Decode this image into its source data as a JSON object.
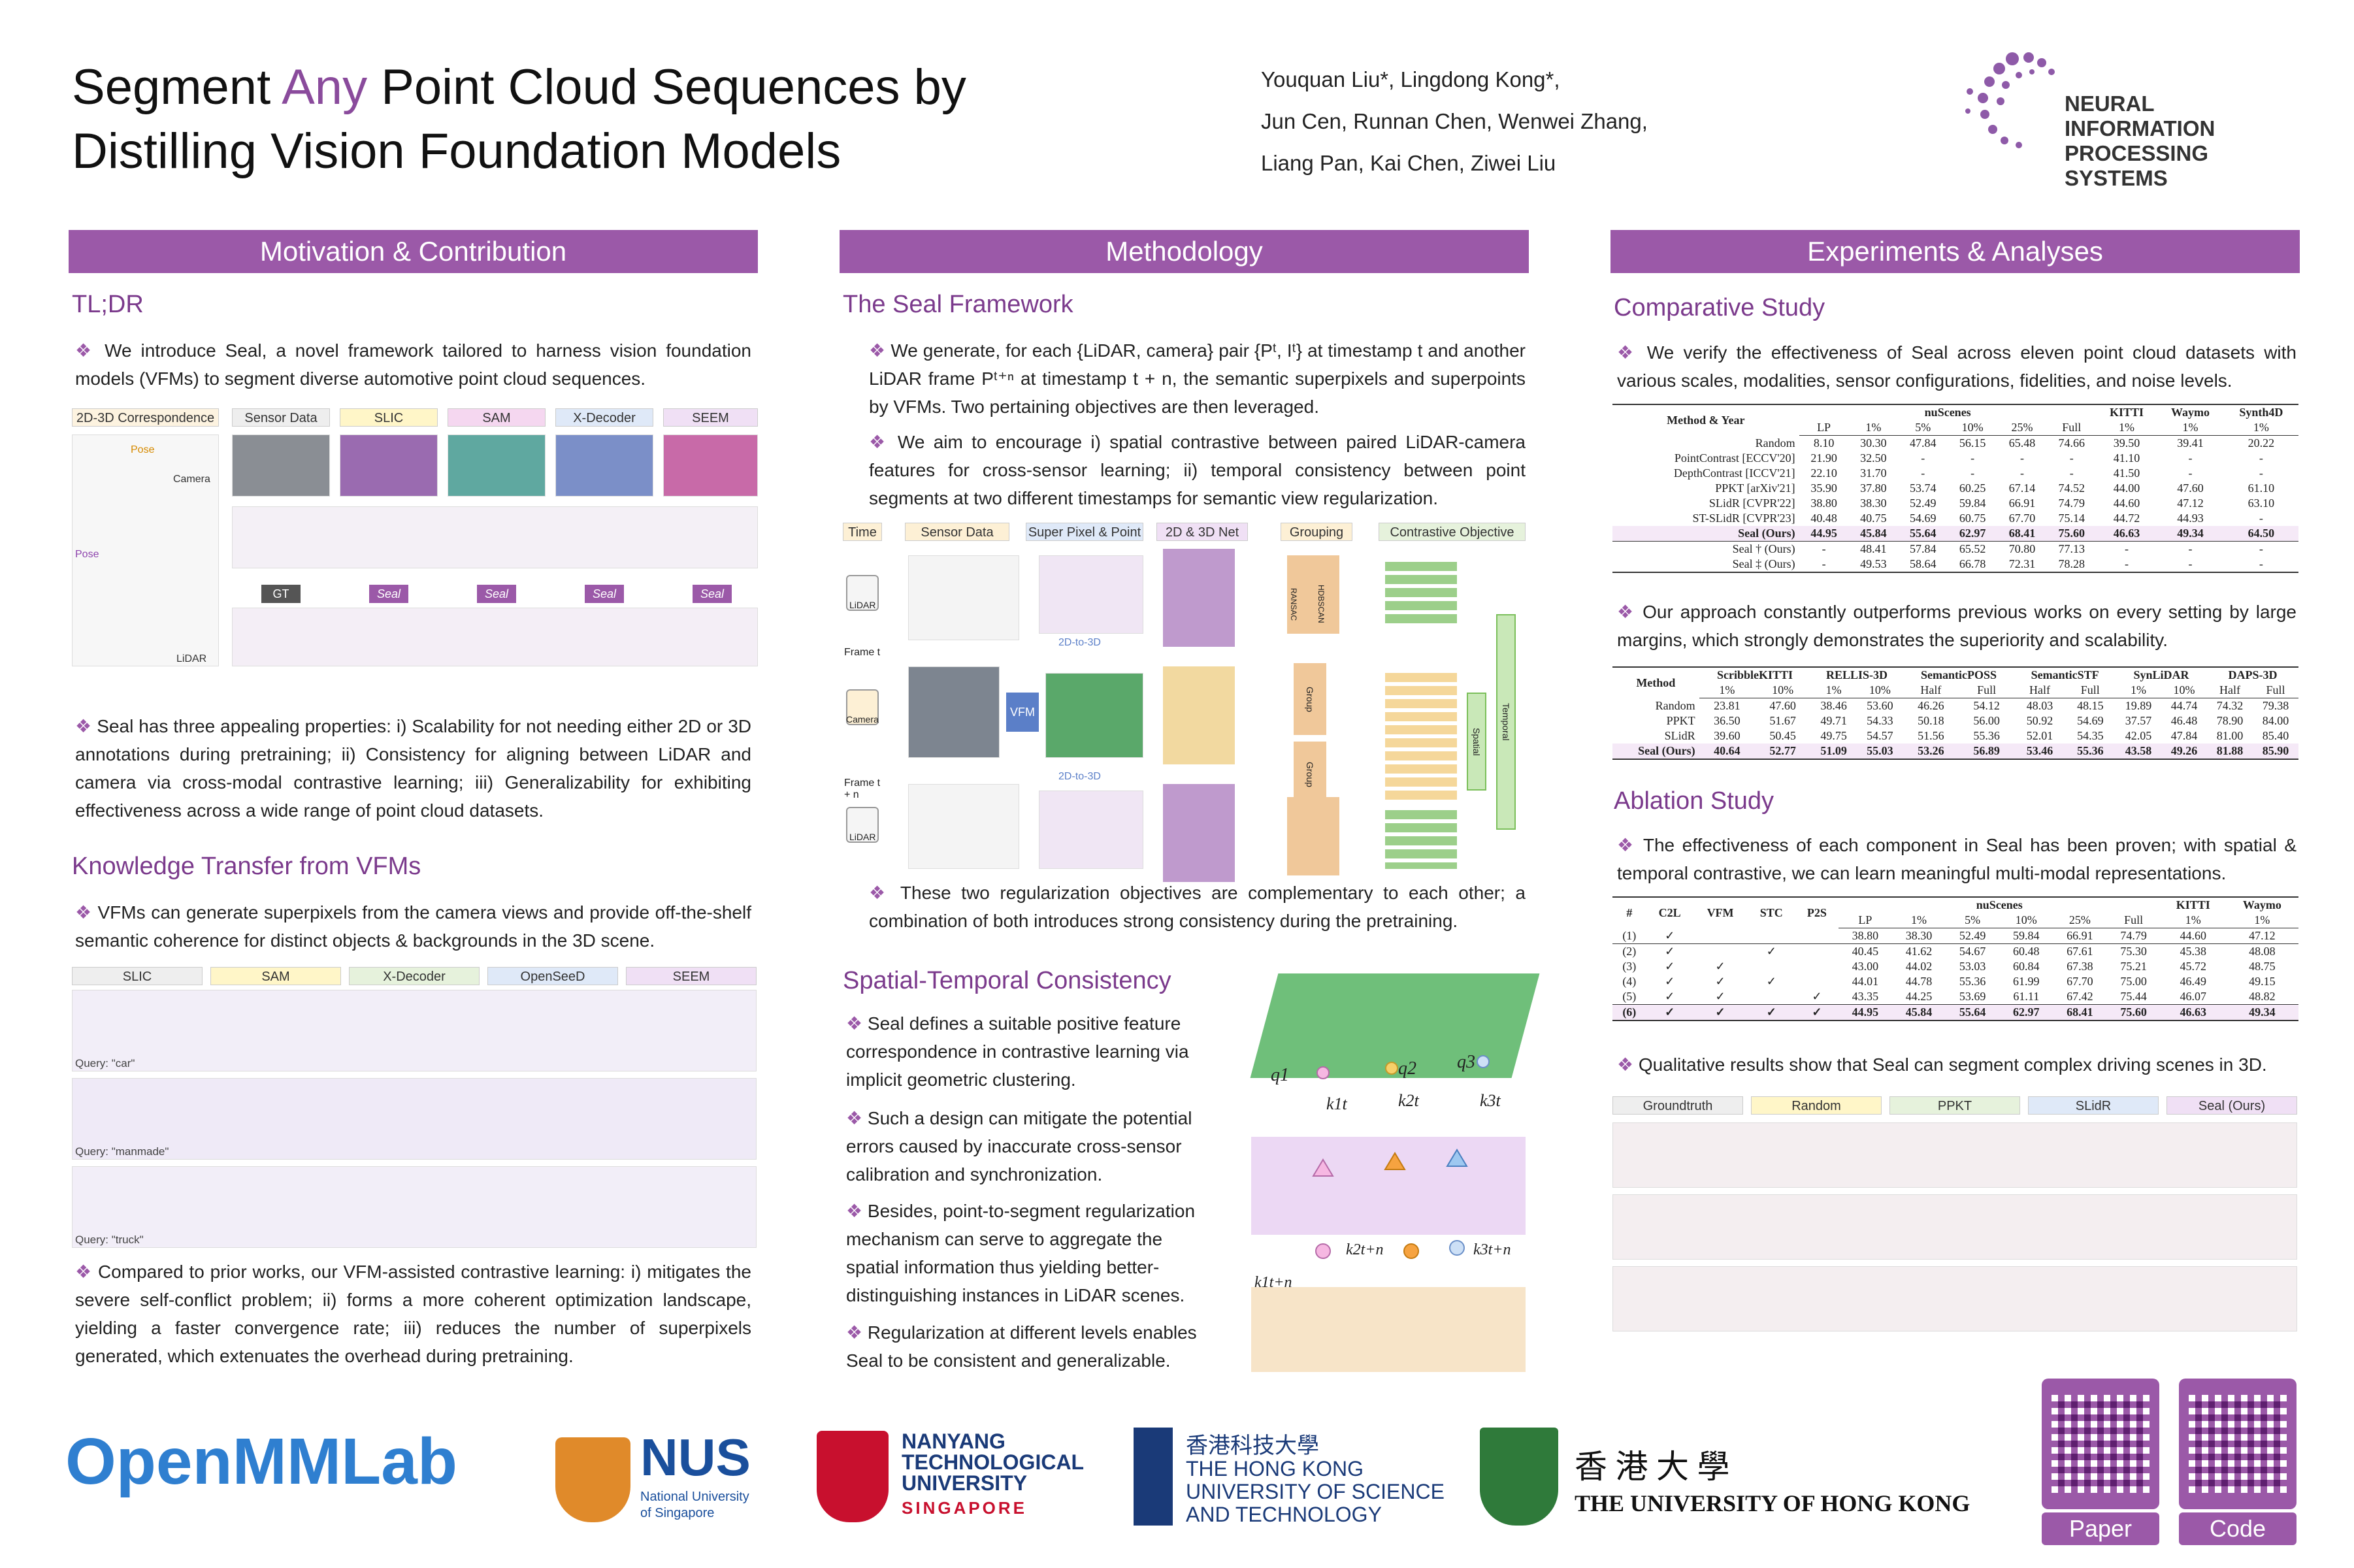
{
  "title": {
    "line1_a": "Segment ",
    "line1_any": "Any",
    "line1_b": " Point Cloud Sequences by",
    "line2": "Distilling Vision Foundation Models"
  },
  "authors": {
    "line1": "Youquan Liu*, Lingdong Kong*,",
    "line2": "Jun Cen, Runnan Chen, Wenwei Zhang,",
    "line3": "Liang Pan, Kai Chen, Ziwei Liu"
  },
  "conference": {
    "line1": "NEURAL INFORMATION",
    "line2": "PROCESSING SYSTEMS"
  },
  "colors": {
    "accent": "#9b59a8",
    "heading": "#7b3a8c",
    "highlight": "#8e44ad"
  },
  "col1": {
    "header": "Motivation & Contribution",
    "tldr_title": "TL;DR",
    "tldr_text": "We introduce Seal, a novel framework tailored to harness vision foundation models (VFMs) to segment diverse automotive point cloud sequences.",
    "fig1_labels": [
      "2D-3D Correspondence",
      "Sensor Data",
      "SLIC",
      "SAM",
      "X-Decoder",
      "SEEM"
    ],
    "fig1_tags": [
      "Pose",
      "Camera",
      "Pose",
      "LiDAR",
      "GT",
      "Seal",
      "Seal",
      "Seal",
      "Seal"
    ],
    "props_text": "Seal has three appealing properties: i) Scalability for not needing either 2D or 3D annotations during pretraining; ii) Consistency for aligning between LiDAR and camera via cross-modal contrastive learning; iii) Generalizability for exhibiting effectiveness across a wide range of point cloud datasets.",
    "kt_title": "Knowledge Transfer from VFMs",
    "kt_text": "VFMs can generate superpixels from the camera views and provide off-the-shelf semantic coherence for distinct objects & backgrounds in the 3D scene.",
    "fig2_labels": [
      "SLIC",
      "SAM",
      "X-Decoder",
      "OpenSeeD",
      "SEEM"
    ],
    "fig2_queries": [
      "Query: \"car\"",
      "Query: \"manmade\"",
      "Query: \"truck\""
    ],
    "compare_text": "Compared to prior works, our VFM-assisted contrastive learning: i) mitigates the severe self-conflict problem; ii) forms a more coherent optimization landscape, yielding a faster convergence rate; iii) reduces the number of superpixels generated, which extenuates the overhead during pretraining."
  },
  "col2": {
    "header": "Methodology",
    "framework_title": "The Seal Framework",
    "framework_text1": "We generate, for each {LiDAR, camera} pair {Pᵗ, Iᵗ} at timestamp t and another LiDAR frame Pᵗ⁺ⁿ at timestamp t + n, the semantic superpixels and superpoints by VFMs. Two pertaining objectives are then leveraged.",
    "framework_text2": "We aim to encourage i) spatial contrastive between paired LiDAR-camera features for cross-sensor learning; ii) temporal consistency between point segments at two different timestamps for semantic view regularization.",
    "pipeline_labels": [
      "Time",
      "Sensor Data",
      "Super Pixel & Point",
      "2D & 3D Net",
      "Grouping",
      "Contrastive Objective"
    ],
    "pipeline_tags": [
      "LiDAR",
      "Frame t",
      "Camera",
      "Frame t + n",
      "LiDAR",
      "VFM",
      "2D-to-3D",
      "2D-to-3D",
      "Spatial",
      "Temporal",
      "RANSAC",
      "HDBSCAN",
      "Group",
      "Group"
    ],
    "reg_text": "These two regularization objectives are complementary to each other; a combination of both introduces strong consistency during the pretraining.",
    "stc_title": "Spatial-Temporal Consistency",
    "stc_b1": "Seal defines a suitable positive feature correspondence in contrastive learning via implicit geometric clustering.",
    "stc_b2": "Such a design can mitigate the potential errors caused by inaccurate cross-sensor calibration and synchronization.",
    "stc_b3": "Besides, point-to-segment regularization mechanism can serve to aggregate the spatial information thus yielding better-distinguishing instances in LiDAR scenes.",
    "stc_b4": "Regularization at different levels enables Seal to be consistent and generalizable.",
    "stc_fig_labels": [
      "q1",
      "q2",
      "q3",
      "k1t",
      "k2t",
      "k3t",
      "k1t+n",
      "k2t+n",
      "k3t+n"
    ]
  },
  "col3": {
    "header": "Experiments & Analyses",
    "comp_title": "Comparative Study",
    "comp_text": "We verify the effectiveness of Seal across eleven point cloud datasets with various scales, modalities, sensor configurations, fidelities, and noise levels.",
    "table1": {
      "groups": [
        "Method & Year",
        "nuScenes",
        "KITTI",
        "Waymo",
        "Synth4D"
      ],
      "cols": [
        "LP",
        "1%",
        "5%",
        "10%",
        "25%",
        "Full",
        "1%",
        "1%",
        "1%"
      ],
      "rows": [
        [
          "Random",
          "8.10",
          "30.30",
          "47.84",
          "56.15",
          "65.48",
          "74.66",
          "39.50",
          "39.41",
          "20.22"
        ],
        [
          "PointContrast [ECCV'20]",
          "21.90",
          "32.50",
          "-",
          "-",
          "-",
          "-",
          "41.10",
          "-",
          "-"
        ],
        [
          "DepthContrast [ICCV'21]",
          "22.10",
          "31.70",
          "-",
          "-",
          "-",
          "-",
          "41.50",
          "-",
          "-"
        ],
        [
          "PPKT [arXiv'21]",
          "35.90",
          "37.80",
          "53.74",
          "60.25",
          "67.14",
          "74.52",
          "44.00",
          "47.60",
          "61.10"
        ],
        [
          "SLidR [CVPR'22]",
          "38.80",
          "38.30",
          "52.49",
          "59.84",
          "66.91",
          "74.79",
          "44.60",
          "47.12",
          "63.10"
        ],
        [
          "ST-SLidR [CVPR'23]",
          "40.48",
          "40.75",
          "54.69",
          "60.75",
          "67.70",
          "75.14",
          "44.72",
          "44.93",
          "-"
        ],
        [
          "Seal (Ours)",
          "44.95",
          "45.84",
          "55.64",
          "62.97",
          "68.41",
          "75.60",
          "46.63",
          "49.34",
          "64.50"
        ],
        [
          "Seal † (Ours)",
          "-",
          "48.41",
          "57.84",
          "65.52",
          "70.80",
          "77.13",
          "-",
          "-",
          "-"
        ],
        [
          "Seal ‡ (Ours)",
          "-",
          "49.53",
          "58.64",
          "66.78",
          "72.31",
          "78.28",
          "-",
          "-",
          "-"
        ]
      ]
    },
    "margin_text": "Our approach constantly outperforms previous works on every setting by large margins, which strongly demonstrates the superiority and scalability.",
    "table2": {
      "groups": [
        "Method",
        "ScribbleKITTI",
        "RELLIS-3D",
        "SemanticPOSS",
        "SemanticSTF",
        "SynLiDAR",
        "DAPS-3D"
      ],
      "cols": [
        "1%",
        "10%",
        "1%",
        "10%",
        "Half",
        "Full",
        "Half",
        "Full",
        "1%",
        "10%",
        "Half",
        "Full"
      ],
      "rows": [
        [
          "Random",
          "23.81",
          "47.60",
          "38.46",
          "53.60",
          "46.26",
          "54.12",
          "48.03",
          "48.15",
          "19.89",
          "44.74",
          "74.32",
          "79.38"
        ],
        [
          "PPKT",
          "36.50",
          "51.67",
          "49.71",
          "54.33",
          "50.18",
          "56.00",
          "50.92",
          "54.69",
          "37.57",
          "46.48",
          "78.90",
          "84.00"
        ],
        [
          "SLidR",
          "39.60",
          "50.45",
          "49.75",
          "54.57",
          "51.56",
          "55.36",
          "52.01",
          "54.35",
          "42.05",
          "47.84",
          "81.00",
          "85.40"
        ],
        [
          "Seal (Ours)",
          "40.64",
          "52.77",
          "51.09",
          "55.03",
          "53.26",
          "56.89",
          "53.46",
          "55.36",
          "43.58",
          "49.26",
          "81.88",
          "85.90"
        ]
      ]
    },
    "abl_title": "Ablation Study",
    "abl_text": "The effectiveness of each component in Seal has been proven; with spatial & temporal contrastive, we can learn meaningful multi-modal representations.",
    "table3": {
      "groups": [
        "#",
        "C2L",
        "VFM",
        "STC",
        "P2S",
        "nuScenes",
        "KITTI",
        "Waymo"
      ],
      "cols": [
        "LP",
        "1%",
        "5%",
        "10%",
        "25%",
        "Full",
        "1%",
        "1%"
      ],
      "rows": [
        [
          "(1)",
          "✓",
          "",
          "",
          "",
          "38.80",
          "38.30",
          "52.49",
          "59.84",
          "66.91",
          "74.79",
          "44.60",
          "47.12"
        ],
        [
          "(2)",
          "✓",
          "",
          "✓",
          "",
          "40.45",
          "41.62",
          "54.67",
          "60.48",
          "67.61",
          "75.30",
          "45.38",
          "48.08"
        ],
        [
          "(3)",
          "✓",
          "✓",
          "",
          "",
          "43.00",
          "44.02",
          "53.03",
          "60.84",
          "67.38",
          "75.21",
          "45.72",
          "48.75"
        ],
        [
          "(4)",
          "✓",
          "✓",
          "✓",
          "",
          "44.01",
          "44.78",
          "55.36",
          "61.99",
          "67.70",
          "75.00",
          "46.49",
          "49.15"
        ],
        [
          "(5)",
          "✓",
          "✓",
          "",
          "✓",
          "43.35",
          "44.25",
          "53.69",
          "61.11",
          "67.42",
          "75.44",
          "46.07",
          "48.82"
        ],
        [
          "(6)",
          "✓",
          "✓",
          "✓",
          "✓",
          "44.95",
          "45.84",
          "55.64",
          "62.97",
          "68.41",
          "75.60",
          "46.63",
          "49.34"
        ]
      ]
    },
    "qual_text": "Qualitative results show that Seal can segment complex driving scenes in 3D.",
    "qual_labels": [
      "Groundtruth",
      "Random",
      "PPKT",
      "SLidR",
      "Seal (Ours)"
    ]
  },
  "footer": {
    "openmmlab": "OpenMMLab",
    "nus": "NUS",
    "nus_sub1": "National University",
    "nus_sub2": "of Singapore",
    "ntu1": "NANYANG",
    "ntu2": "TECHNOLOGICAL",
    "ntu3": "UNIVERSITY",
    "ntu4": "SINGAPORE",
    "hkust_cn": "香港科技大學",
    "hkust1": "THE HONG KONG",
    "hkust2": "UNIVERSITY OF SCIENCE",
    "hkust3": "AND TECHNOLOGY",
    "hku_cn": "香 港 大 學",
    "hku_en": "THE UNIVERSITY OF HONG KONG",
    "paper_btn": "Paper",
    "code_btn": "Code"
  }
}
